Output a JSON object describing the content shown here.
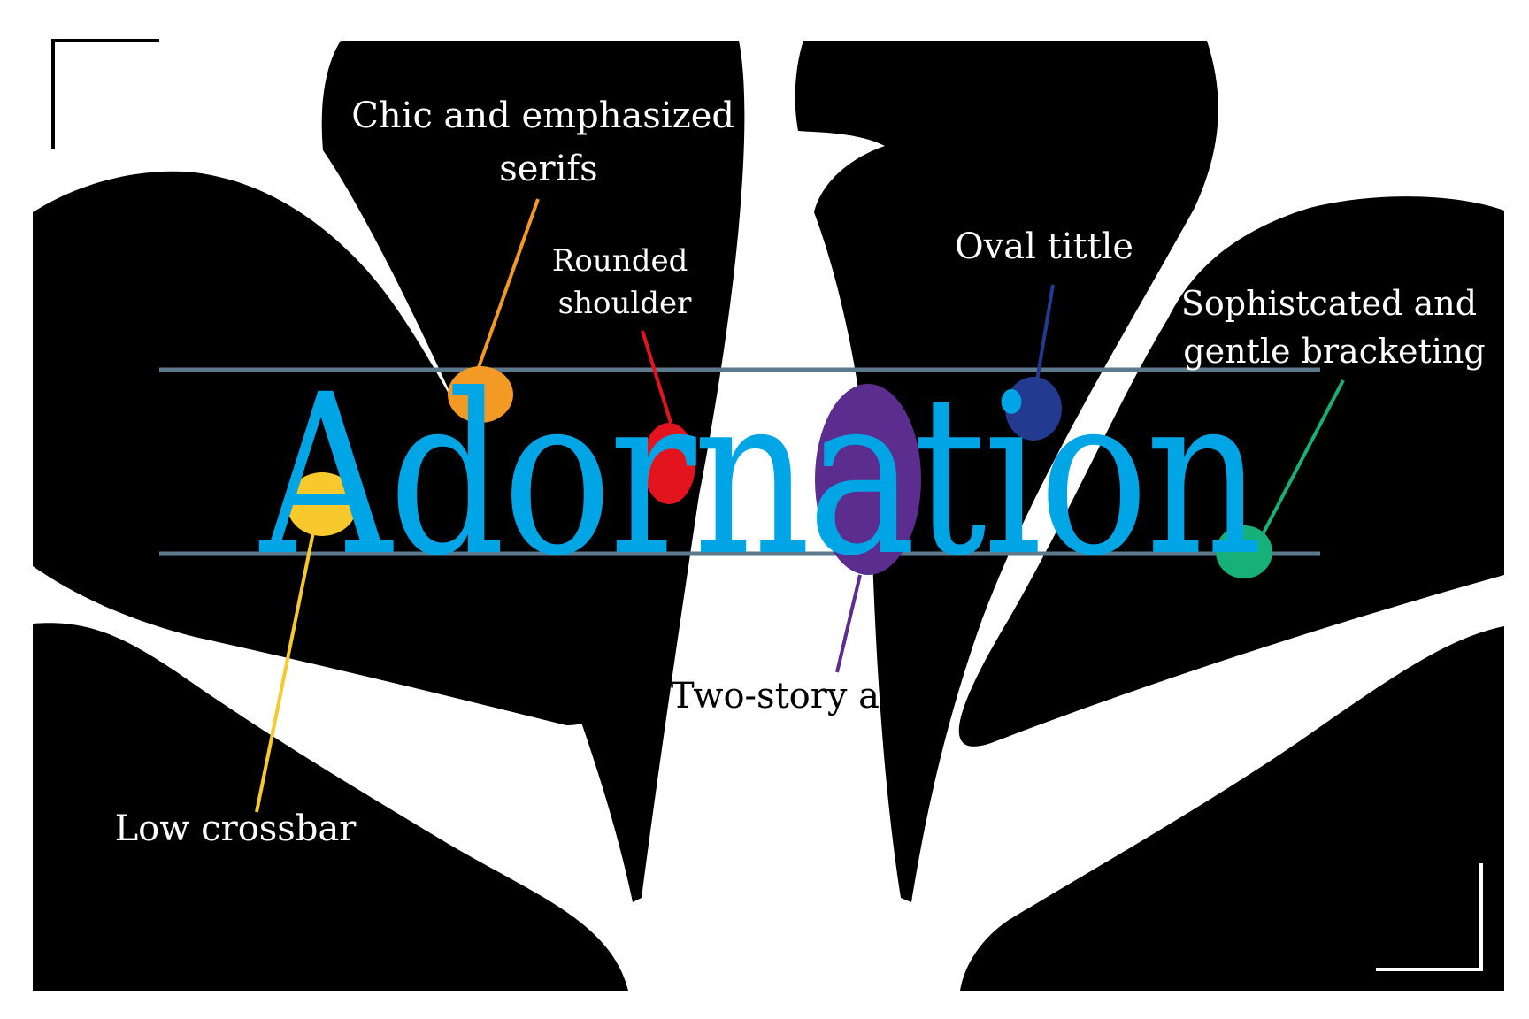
{
  "specimen": {
    "word": "Adornation",
    "word_color": "#00a5e6"
  },
  "background": {
    "petal_color": "#000000",
    "page_color": "#ffffff",
    "guide_color": "#5b7a8c",
    "frame_color": "#000000"
  },
  "annotations": [
    {
      "id": "serifs",
      "lines": [
        "Chic and emphasized",
        "serifs"
      ],
      "color": "#f39a25"
    },
    {
      "id": "shoulder",
      "lines": [
        "Rounded",
        "shoulder"
      ],
      "color": "#e3141d"
    },
    {
      "id": "tittle",
      "lines": [
        "Oval tittle"
      ],
      "color": "#223a8f"
    },
    {
      "id": "bracketing",
      "lines": [
        "Sophistcated and",
        "gentle bracketing"
      ],
      "color": "#17b07a"
    },
    {
      "id": "crossbar",
      "lines": [
        "Low crossbar"
      ],
      "color": "#f8c92c"
    },
    {
      "id": "two-story",
      "lines": [
        "Two-story a"
      ],
      "color": "#5a2d8e"
    }
  ]
}
